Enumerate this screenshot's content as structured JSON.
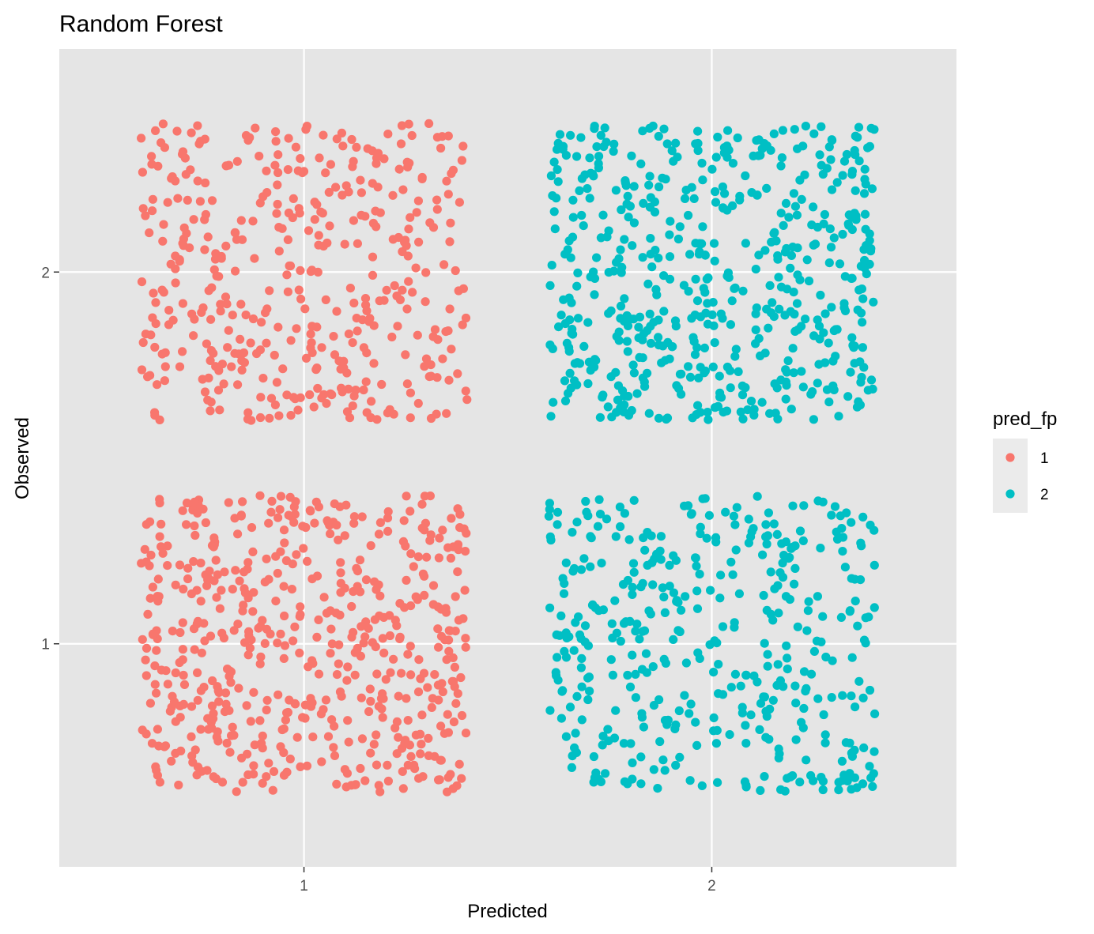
{
  "chart_data": {
    "type": "scatter",
    "title": "Random Forest",
    "xlabel": "Predicted",
    "ylabel": "Observed",
    "x_ticks": [
      "1",
      "2"
    ],
    "y_ticks": [
      "1",
      "2"
    ],
    "xlim": [
      0.4,
      2.6
    ],
    "ylim": [
      0.4,
      2.6
    ],
    "jitter": 0.4,
    "grid": true,
    "legend": {
      "title": "pred_fp",
      "position": "right",
      "entries": [
        {
          "label": "1",
          "color": "#F8766D"
        },
        {
          "label": "2",
          "color": "#00BFC4"
        }
      ]
    },
    "series": [
      {
        "name": "1",
        "color": "#F8766D",
        "predicted": 1,
        "observed": 1,
        "count": 560
      },
      {
        "name": "1",
        "color": "#F8766D",
        "predicted": 1,
        "observed": 2,
        "count": 420
      },
      {
        "name": "2",
        "color": "#00BFC4",
        "predicted": 2,
        "observed": 1,
        "count": 420
      },
      {
        "name": "2",
        "color": "#00BFC4",
        "predicted": 2,
        "observed": 2,
        "count": 560
      }
    ],
    "panel_color": "#E5E5E5",
    "grid_color": "#FFFFFF"
  }
}
